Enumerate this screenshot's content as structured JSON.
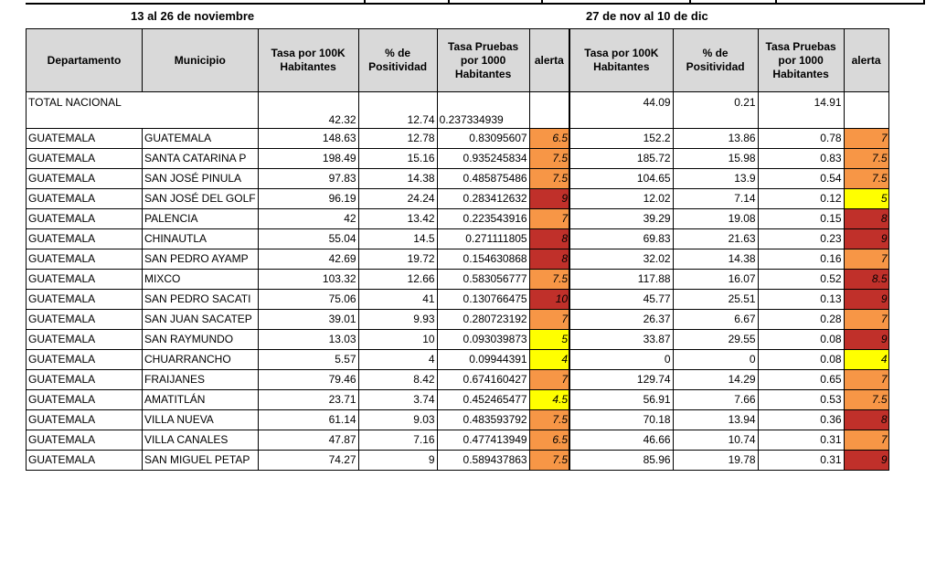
{
  "periods": [
    "13 al 26 de noviembre",
    "27 de nov al 10 de dic"
  ],
  "headers": {
    "departamento": "Departamento",
    "municipio": "Municipio",
    "tasa_line1": "Tasa por 100K",
    "tasa_line2": "Habitantes",
    "pos_line1": "% de",
    "pos_line2": "Positividad",
    "pruebas_line1": "Tasa Pruebas",
    "pruebas_line2": "por 1000",
    "pruebas_line3": "Habitantes",
    "alerta": "alerta"
  },
  "alert_colors": {
    "orange": "#f79646",
    "red": "#c0302a",
    "yellow": "#ffff00"
  },
  "total": {
    "label": "TOTAL NACIONAL",
    "p1": {
      "tasa": "42.32",
      "pos": "12.74",
      "pruebas": "0.237334939"
    },
    "p2": {
      "tasa": "44.09",
      "pos": "0.21",
      "pruebas": "14.91"
    }
  },
  "rows": [
    {
      "dep": "GUATEMALA",
      "mun": "GUATEMALA",
      "t1": "148.63",
      "p1": "12.78",
      "r1": "0.83095607",
      "a1": "6.5",
      "c1": "orange",
      "t2": "152.2",
      "p2": "13.86",
      "r2": "0.78",
      "a2": "7",
      "c2": "orange"
    },
    {
      "dep": "GUATEMALA",
      "mun": "SANTA CATARINA P",
      "t1": "198.49",
      "p1": "15.16",
      "r1": "0.935245834",
      "a1": "7.5",
      "c1": "orange",
      "t2": "185.72",
      "p2": "15.98",
      "r2": "0.83",
      "a2": "7.5",
      "c2": "orange"
    },
    {
      "dep": "GUATEMALA",
      "mun": "SAN JOSÉ PINULA",
      "t1": "97.83",
      "p1": "14.38",
      "r1": "0.485875486",
      "a1": "7.5",
      "c1": "orange",
      "t2": "104.65",
      "p2": "13.9",
      "r2": "0.54",
      "a2": "7.5",
      "c2": "orange"
    },
    {
      "dep": "GUATEMALA",
      "mun": "SAN JOSÉ DEL GOLF",
      "t1": "96.19",
      "p1": "24.24",
      "r1": "0.283412632",
      "a1": "9",
      "c1": "red",
      "t2": "12.02",
      "p2": "7.14",
      "r2": "0.12",
      "a2": "5",
      "c2": "yellow"
    },
    {
      "dep": "GUATEMALA",
      "mun": "PALENCIA",
      "t1": "42",
      "p1": "13.42",
      "r1": "0.223543916",
      "a1": "7",
      "c1": "orange",
      "t2": "39.29",
      "p2": "19.08",
      "r2": "0.15",
      "a2": "8",
      "c2": "red"
    },
    {
      "dep": "GUATEMALA",
      "mun": "CHINAUTLA",
      "t1": "55.04",
      "p1": "14.5",
      "r1": "0.271111805",
      "a1": "8",
      "c1": "red",
      "t2": "69.83",
      "p2": "21.63",
      "r2": "0.23",
      "a2": "9",
      "c2": "red"
    },
    {
      "dep": "GUATEMALA",
      "mun": "SAN PEDRO AYAMP",
      "t1": "42.69",
      "p1": "19.72",
      "r1": "0.154630868",
      "a1": "8",
      "c1": "red",
      "t2": "32.02",
      "p2": "14.38",
      "r2": "0.16",
      "a2": "7",
      "c2": "orange"
    },
    {
      "dep": "GUATEMALA",
      "mun": "MIXCO",
      "t1": "103.32",
      "p1": "12.66",
      "r1": "0.583056777",
      "a1": "7.5",
      "c1": "orange",
      "t2": "117.88",
      "p2": "16.07",
      "r2": "0.52",
      "a2": "8.5",
      "c2": "red"
    },
    {
      "dep": "GUATEMALA",
      "mun": "SAN PEDRO SACATI",
      "t1": "75.06",
      "p1": "41",
      "r1": "0.130766475",
      "a1": "10",
      "c1": "red",
      "t2": "45.77",
      "p2": "25.51",
      "r2": "0.13",
      "a2": "9",
      "c2": "red"
    },
    {
      "dep": "GUATEMALA",
      "mun": "SAN JUAN SACATEP",
      "t1": "39.01",
      "p1": "9.93",
      "r1": "0.280723192",
      "a1": "7",
      "c1": "orange",
      "t2": "26.37",
      "p2": "6.67",
      "r2": "0.28",
      "a2": "7",
      "c2": "orange"
    },
    {
      "dep": "GUATEMALA",
      "mun": "SAN RAYMUNDO",
      "t1": "13.03",
      "p1": "10",
      "r1": "0.093039873",
      "a1": "5",
      "c1": "yellow",
      "t2": "33.87",
      "p2": "29.55",
      "r2": "0.08",
      "a2": "9",
      "c2": "red"
    },
    {
      "dep": "GUATEMALA",
      "mun": "CHUARRANCHO",
      "t1": "5.57",
      "p1": "4",
      "r1": "0.09944391",
      "a1": "4",
      "c1": "yellow",
      "t2": "0",
      "p2": "0",
      "r2": "0.08",
      "a2": "4",
      "c2": "yellow"
    },
    {
      "dep": "GUATEMALA",
      "mun": "FRAIJANES",
      "t1": "79.46",
      "p1": "8.42",
      "r1": "0.674160427",
      "a1": "7",
      "c1": "orange",
      "t2": "129.74",
      "p2": "14.29",
      "r2": "0.65",
      "a2": "7",
      "c2": "orange"
    },
    {
      "dep": "GUATEMALA",
      "mun": "AMATITLÁN",
      "t1": "23.71",
      "p1": "3.74",
      "r1": "0.452465477",
      "a1": "4.5",
      "c1": "yellow",
      "t2": "56.91",
      "p2": "7.66",
      "r2": "0.53",
      "a2": "7.5",
      "c2": "orange"
    },
    {
      "dep": "GUATEMALA",
      "mun": "VILLA NUEVA",
      "t1": "61.14",
      "p1": "9.03",
      "r1": "0.483593792",
      "a1": "7.5",
      "c1": "orange",
      "t2": "70.18",
      "p2": "13.94",
      "r2": "0.36",
      "a2": "8",
      "c2": "red"
    },
    {
      "dep": "GUATEMALA",
      "mun": "VILLA CANALES",
      "t1": "47.87",
      "p1": "7.16",
      "r1": "0.477413949",
      "a1": "6.5",
      "c1": "orange",
      "t2": "46.66",
      "p2": "10.74",
      "r2": "0.31",
      "a2": "7",
      "c2": "orange"
    },
    {
      "dep": "GUATEMALA",
      "mun": "SAN MIGUEL PETAP",
      "t1": "74.27",
      "p1": "9",
      "r1": "0.589437863",
      "a1": "7.5",
      "c1": "orange",
      "t2": "85.96",
      "p2": "19.78",
      "r2": "0.31",
      "a2": "9",
      "c2": "red"
    }
  ]
}
